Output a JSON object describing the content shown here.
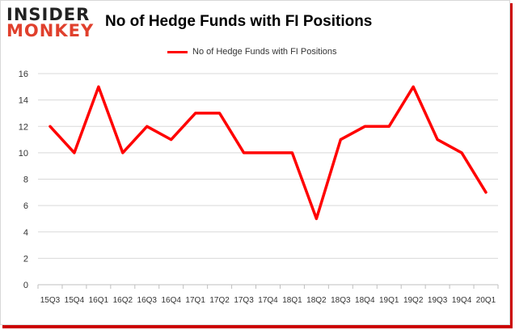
{
  "brand": {
    "line1": "INSIDER",
    "line2": "MONKEY",
    "line1_color": "#222222",
    "line2_color": "#e0402d"
  },
  "accent_color": "#cc0000",
  "series_color": "#ff0000",
  "chart_data": {
    "type": "line",
    "title": "No of Hedge Funds with FI Positions",
    "xlabel": "",
    "ylabel": "",
    "ylim": [
      0,
      16
    ],
    "yticks": [
      0,
      2,
      4,
      6,
      8,
      10,
      12,
      14,
      16
    ],
    "grid": "horizontal",
    "legend_position": "top-center",
    "categories": [
      "15Q3",
      "15Q4",
      "16Q1",
      "16Q2",
      "16Q3",
      "16Q4",
      "17Q1",
      "17Q2",
      "17Q3",
      "17Q4",
      "18Q1",
      "18Q2",
      "18Q3",
      "18Q4",
      "19Q1",
      "19Q2",
      "19Q3",
      "19Q4",
      "20Q1"
    ],
    "series": [
      {
        "name": "No of Hedge Funds with FI Positions",
        "values": [
          12,
          10,
          15,
          10,
          12,
          11,
          13,
          13,
          10,
          10,
          10,
          5,
          11,
          12,
          12,
          15,
          11,
          10,
          7
        ]
      }
    ]
  }
}
